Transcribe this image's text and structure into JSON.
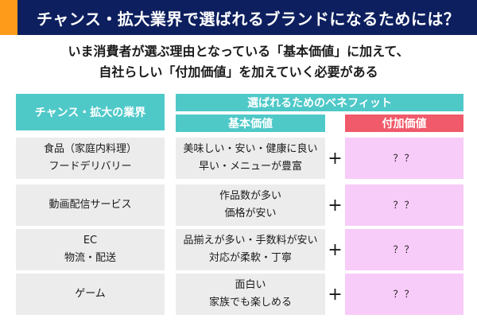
{
  "title": "チャンス・拡大業界で選ばれるブランドになるためには？",
  "subtitle": {
    "line1": "いま消費者が選ぶ理由となっている「基本価値」に加えて、",
    "line2": "自社らしい「付加価値」を加えていく必要がある"
  },
  "colors": {
    "title_bg": "#0d1f5e",
    "title_accent": "#ff9b1a",
    "header_teal": "#4fc8c8",
    "header_red": "#f05a6a",
    "cell_gray": "#ececec",
    "cell_pink": "#f8ccf8"
  },
  "table": {
    "header_industry": "チャンス・拡大の業界",
    "header_benefit": "選ばれるためのベネフィット",
    "header_base": "基本価値",
    "header_added": "付加価値",
    "rows": [
      {
        "industry": [
          "食品（家庭内料理）",
          "フードデリバリー"
        ],
        "base": [
          "美味しい・安い・健康に良い",
          "早い・メニューが豊富"
        ],
        "plus": "+",
        "added": "？？"
      },
      {
        "industry": [
          "動画配信サービス"
        ],
        "base": [
          "作品数が多い",
          "価格が安い"
        ],
        "plus": "+",
        "added": "？？"
      },
      {
        "industry": [
          "EC",
          "物流・配送"
        ],
        "base": [
          "品揃えが多い・手数料が安い",
          "対応が柔軟・丁寧"
        ],
        "plus": "+",
        "added": "？？"
      },
      {
        "industry": [
          "ゲーム"
        ],
        "base": [
          "面白い",
          "家族でも楽しめる"
        ],
        "plus": "+",
        "added": "？？"
      }
    ]
  }
}
